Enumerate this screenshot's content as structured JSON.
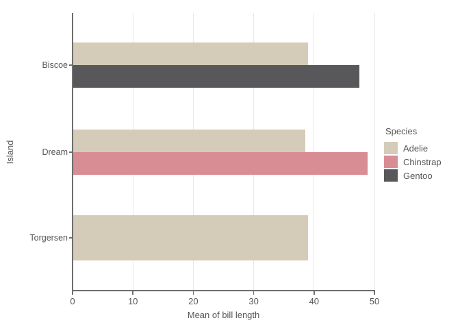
{
  "chart_data": {
    "type": "bar",
    "orientation": "horizontal",
    "title": "",
    "xlabel": "Mean of bill length",
    "ylabel": "Island",
    "categories": [
      "Biscoe",
      "Dream",
      "Torgersen"
    ],
    "series": [
      {
        "name": "Adelie",
        "color": "#d4ccb9",
        "values": [
          38.98,
          38.5,
          38.95
        ]
      },
      {
        "name": "Chinstrap",
        "color": "#d78d93",
        "values": [
          null,
          48.83,
          null
        ]
      },
      {
        "name": "Gentoo",
        "color": "#58585a",
        "values": [
          47.5,
          null,
          null
        ]
      }
    ],
    "xlim": [
      0,
      50
    ],
    "xticks": [
      0,
      10,
      20,
      30,
      40,
      50
    ],
    "grid": "vertical-only",
    "legend_title": "Species",
    "legend_position": "right",
    "layout": {
      "band_centers_frac": [
        0.188,
        0.502,
        0.812
      ],
      "group_thickness_px": 66,
      "grid_color": "#e8e8e8",
      "axis_color": "#6e6e6e",
      "text_color": "#555555",
      "background": "#ffffff"
    }
  }
}
